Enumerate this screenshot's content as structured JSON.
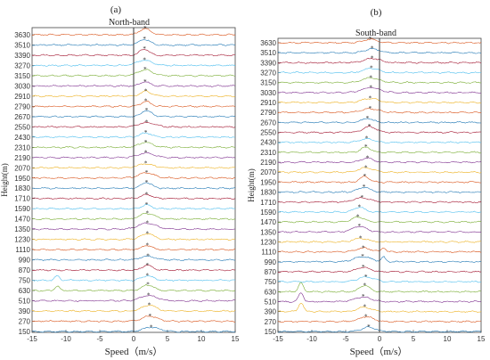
{
  "chart_data": [
    {
      "type": "line",
      "panel_label": "(a)",
      "title": "North-band",
      "xlabel": "Speed（m/s）",
      "ylabel": "Height(m)",
      "xlim": [
        -15,
        15
      ],
      "xticks": [
        -15,
        -10,
        -5,
        0,
        5,
        10,
        15
      ],
      "heights": [
        150,
        270,
        390,
        510,
        630,
        750,
        870,
        990,
        1110,
        1230,
        1350,
        1470,
        1590,
        1710,
        1830,
        1950,
        2070,
        2190,
        2310,
        2430,
        2550,
        2670,
        2790,
        2910,
        3030,
        3150,
        3270,
        3390,
        3510,
        3630
      ],
      "peak_speeds": [
        2.6,
        2.4,
        2.3,
        2.2,
        2.1,
        2.0,
        2.0,
        2.1,
        2.0,
        2.0,
        2.0,
        2.0,
        1.9,
        1.9,
        1.9,
        1.9,
        1.8,
        1.8,
        1.8,
        1.8,
        1.9,
        1.9,
        1.8,
        1.8,
        1.7,
        1.7,
        1.6,
        1.6,
        1.6,
        1.7
      ],
      "vertical_line_x": 0
    },
    {
      "type": "line",
      "panel_label": "(b)",
      "title": "South-band",
      "xlabel": "Speed（m/s）",
      "ylabel": "Height(m)",
      "xlim": [
        -15,
        15
      ],
      "xticks": [
        -15,
        -10,
        -5,
        0,
        5,
        10,
        15
      ],
      "heights": [
        150,
        270,
        390,
        510,
        630,
        750,
        870,
        990,
        1110,
        1230,
        1350,
        1470,
        1590,
        1710,
        1830,
        1950,
        2070,
        2190,
        2310,
        2430,
        2550,
        2670,
        2790,
        2910,
        3030,
        3150,
        3270,
        3390,
        3510,
        3630
      ],
      "peak_speeds": [
        -1.6,
        -2.0,
        -2.2,
        -2.4,
        -2.2,
        -2.0,
        -2.4,
        -2.5,
        -2.4,
        -2.8,
        -3.0,
        -3.2,
        -3.0,
        -2.6,
        -2.3,
        -2.2,
        -2.0,
        -1.8,
        -2.0,
        -1.9,
        -1.5,
        -1.8,
        -1.4,
        -1.4,
        -1.3,
        -1.3,
        -1.2,
        -1.1,
        -1.1,
        -1.4
      ],
      "vertical_line_x": 0
    }
  ],
  "colors": [
    "#1f77b4",
    "#d95319",
    "#edb120",
    "#7e2f8e",
    "#77ac30",
    "#4dbeee",
    "#a2142f"
  ]
}
